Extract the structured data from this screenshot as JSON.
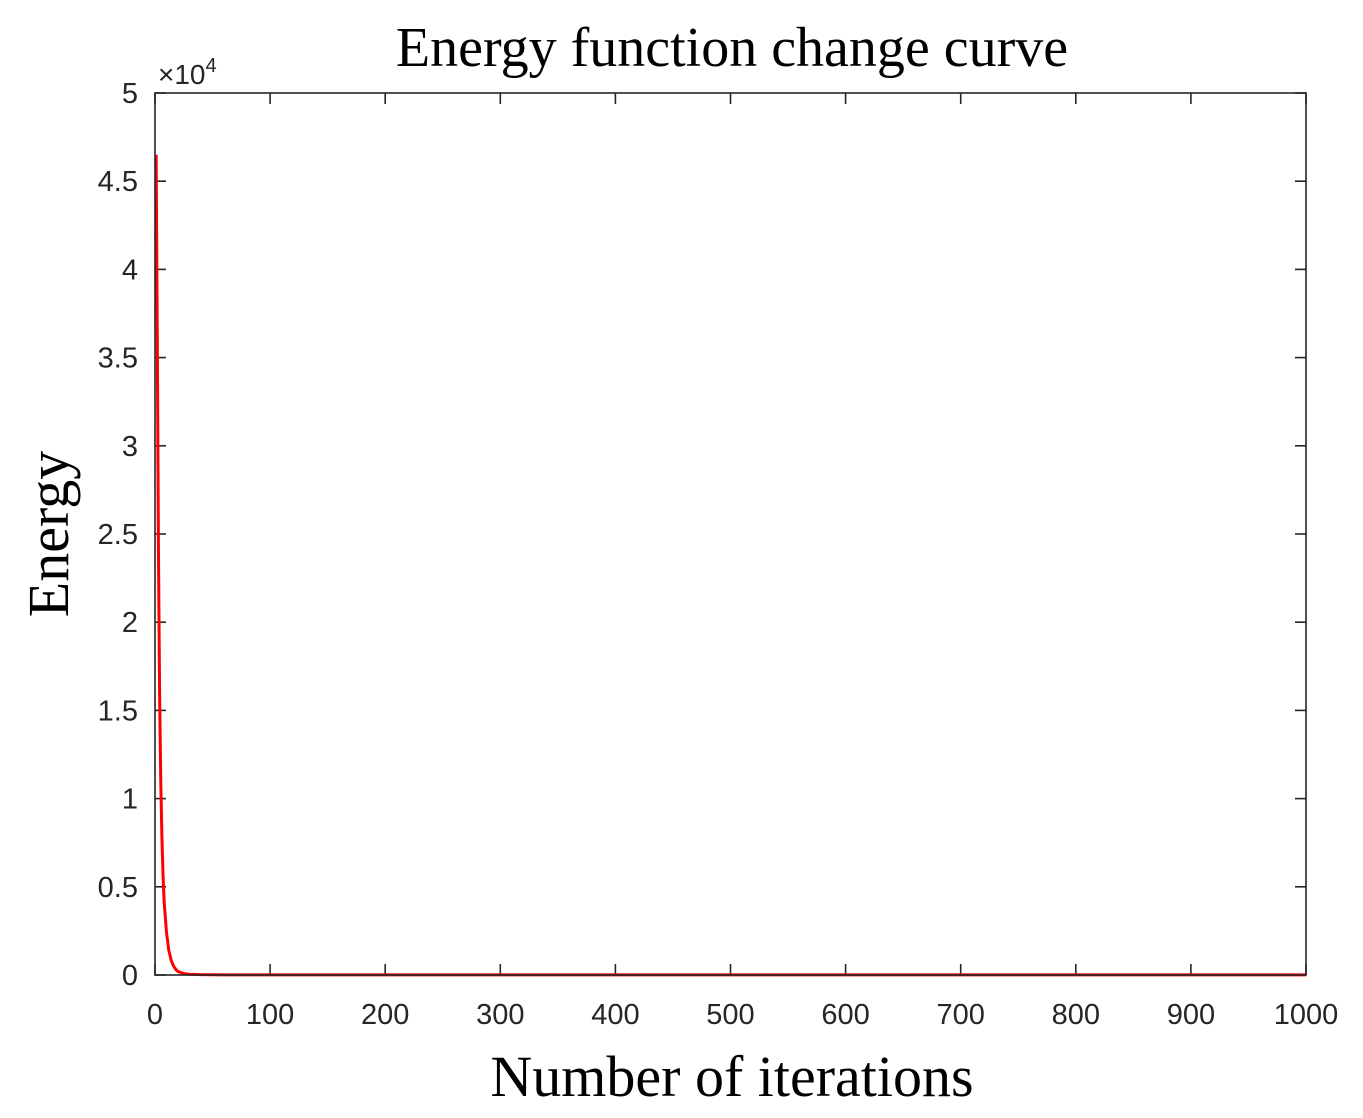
{
  "chart_data": {
    "type": "line",
    "title": "Energy function change curve",
    "xlabel": "Number of iterations",
    "ylabel": "Energy",
    "y_exponent_label": "×10",
    "y_exponent_power": "4",
    "xlim": [
      0,
      1000
    ],
    "ylim": [
      0,
      5
    ],
    "x_ticks": [
      0,
      100,
      200,
      300,
      400,
      500,
      600,
      700,
      800,
      900,
      1000
    ],
    "x_tick_labels": [
      "0",
      "100",
      "200",
      "300",
      "400",
      "500",
      "600",
      "700",
      "800",
      "900",
      "1000"
    ],
    "y_ticks": [
      0,
      0.5,
      1,
      1.5,
      2,
      2.5,
      3,
      3.5,
      4,
      4.5,
      5
    ],
    "y_tick_labels": [
      "0",
      "0.5",
      "1",
      "1.5",
      "2",
      "2.5",
      "3",
      "3.5",
      "4",
      "4.5",
      "5"
    ],
    "grid": false,
    "series": [
      {
        "name": "Energy",
        "color": "#ff0000",
        "x": [
          1,
          2,
          3,
          4,
          5,
          6,
          7,
          8,
          10,
          12,
          14,
          16,
          18,
          20,
          25,
          30,
          40,
          60,
          100,
          200,
          400,
          600,
          800,
          1000
        ],
        "y": [
          4.65,
          3.6,
          2.4,
          1.6,
          1.1,
          0.78,
          0.56,
          0.41,
          0.24,
          0.14,
          0.085,
          0.052,
          0.032,
          0.02,
          0.008,
          0.004,
          0.002,
          0.001,
          0.001,
          0.001,
          0.001,
          0.001,
          0.001,
          0.001
        ]
      }
    ]
  }
}
